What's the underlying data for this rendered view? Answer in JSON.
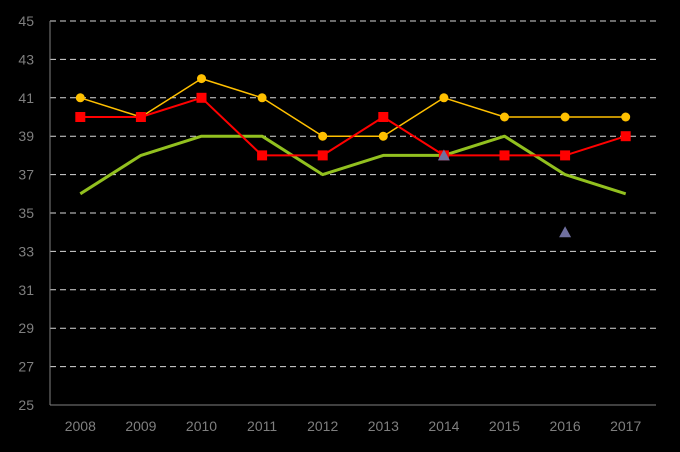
{
  "chart_data": {
    "type": "line",
    "title": "",
    "xlabel": "",
    "ylabel": "",
    "categories": [
      "2008",
      "2009",
      "2010",
      "2011",
      "2012",
      "2013",
      "2014",
      "2015",
      "2016",
      "2017"
    ],
    "ylim": [
      25,
      45
    ],
    "yticks": [
      25,
      27,
      29,
      31,
      33,
      35,
      37,
      39,
      41,
      43,
      45
    ],
    "grid": "horizontal dashed",
    "legend": "none",
    "series": [
      {
        "color": "#92c01f",
        "marker": "none",
        "values": [
          36,
          38,
          39,
          39,
          37,
          38,
          38,
          39,
          37,
          36
        ]
      },
      {
        "color": "#ffc000",
        "marker": "circle",
        "values": [
          41,
          40,
          42,
          41,
          39,
          39,
          41,
          40,
          40,
          40
        ]
      },
      {
        "color": "#ff0000",
        "marker": "square",
        "values": [
          40,
          40,
          41,
          38,
          38,
          40,
          38,
          38,
          38,
          39
        ]
      },
      {
        "color": "#7070a0",
        "marker": "triangle",
        "values": [
          null,
          null,
          null,
          null,
          null,
          null,
          38,
          null,
          34,
          null
        ]
      }
    ]
  }
}
